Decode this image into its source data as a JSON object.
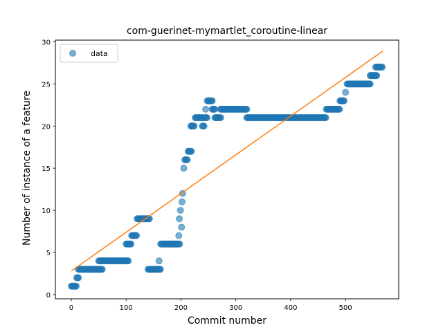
{
  "chart_data": {
    "type": "scatter",
    "title": "com-guerinet-mymartlet_coroutine-linear",
    "xlabel": "Commit number",
    "ylabel": "Number of instance of a feature",
    "xlim": [
      -29,
      597
    ],
    "ylim": [
      -0.5,
      30.2
    ],
    "xticks": [
      0,
      100,
      200,
      300,
      400,
      500
    ],
    "yticks": [
      0,
      5,
      10,
      15,
      20,
      25,
      30
    ],
    "grid": false,
    "legend_position": "top-left",
    "series": [
      {
        "name": "data",
        "kind": "scatter",
        "color": "#1f77b4",
        "segments": [
          [
            0,
            10,
            1
          ],
          [
            10,
            13,
            2
          ],
          [
            13,
            57,
            3
          ],
          [
            50,
            105,
            4
          ],
          [
            100,
            110,
            6
          ],
          [
            110,
            120,
            7
          ],
          [
            120,
            143,
            9
          ],
          [
            140,
            163,
            3
          ],
          [
            160,
            160,
            4
          ],
          [
            163,
            198,
            6
          ],
          [
            196,
            196,
            7
          ],
          [
            197,
            197,
            9
          ],
          [
            199,
            199,
            10
          ],
          [
            201,
            201,
            8
          ],
          [
            202,
            202,
            11
          ],
          [
            203,
            203,
            12
          ],
          [
            205,
            205,
            15
          ],
          [
            207,
            212,
            16
          ],
          [
            213,
            220,
            17
          ],
          [
            218,
            225,
            20
          ],
          [
            226,
            240,
            21
          ],
          [
            239,
            242,
            20
          ],
          [
            243,
            248,
            21
          ],
          [
            245,
            245,
            22
          ],
          [
            248,
            258,
            23
          ],
          [
            257,
            262,
            22
          ],
          [
            262,
            273,
            21
          ],
          [
            272,
            320,
            22
          ],
          [
            320,
            465,
            21
          ],
          [
            465,
            490,
            22
          ],
          [
            490,
            498,
            23
          ],
          [
            500,
            500,
            24
          ],
          [
            503,
            545,
            25
          ],
          [
            545,
            557,
            26
          ],
          [
            555,
            568,
            27
          ]
        ]
      },
      {
        "name": "",
        "kind": "line",
        "color": "#ff7f0e",
        "points": [
          [
            0,
            2.8
          ],
          [
            568,
            28.9
          ]
        ]
      }
    ]
  }
}
